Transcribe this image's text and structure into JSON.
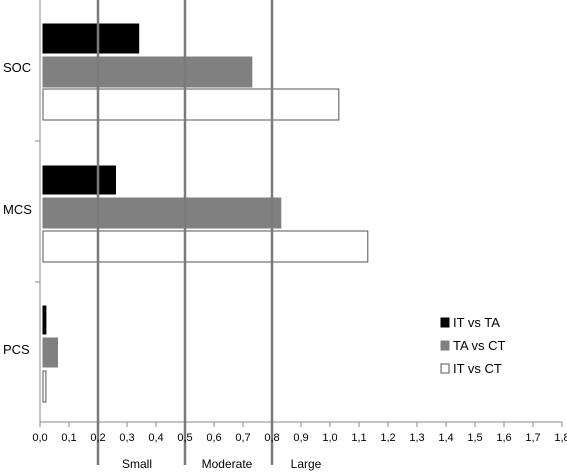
{
  "chart_data": {
    "type": "bar",
    "orientation": "horizontal",
    "categories": [
      "SOC",
      "MCS",
      "PCS"
    ],
    "series": [
      {
        "name": "IT vs TA",
        "values": [
          0.33,
          0.25,
          0.01
        ],
        "color": "#000000"
      },
      {
        "name": "TA vs CT",
        "values": [
          0.72,
          0.82,
          0.05
        ],
        "color": "#808080"
      },
      {
        "name": "IT vs CT",
        "values": [
          1.02,
          1.12,
          0.01
        ],
        "color": "#ffffff"
      }
    ],
    "xlim": [
      0,
      1.8
    ],
    "x_ticks": [
      "0,0",
      "0,1",
      "0,2",
      "0,3",
      "0,4",
      "0,5",
      "0,6",
      "0,7",
      "0,8",
      "0,9",
      "1,0",
      "1,1",
      "1,2",
      "1,3",
      "1,4",
      "1,5",
      "1,6",
      "1,7",
      "1,8"
    ],
    "reference_lines": [
      0.2,
      0.5,
      0.8
    ],
    "region_labels": [
      "Small",
      "Moderate",
      "Large"
    ],
    "legend_position": "right",
    "grid": false
  }
}
